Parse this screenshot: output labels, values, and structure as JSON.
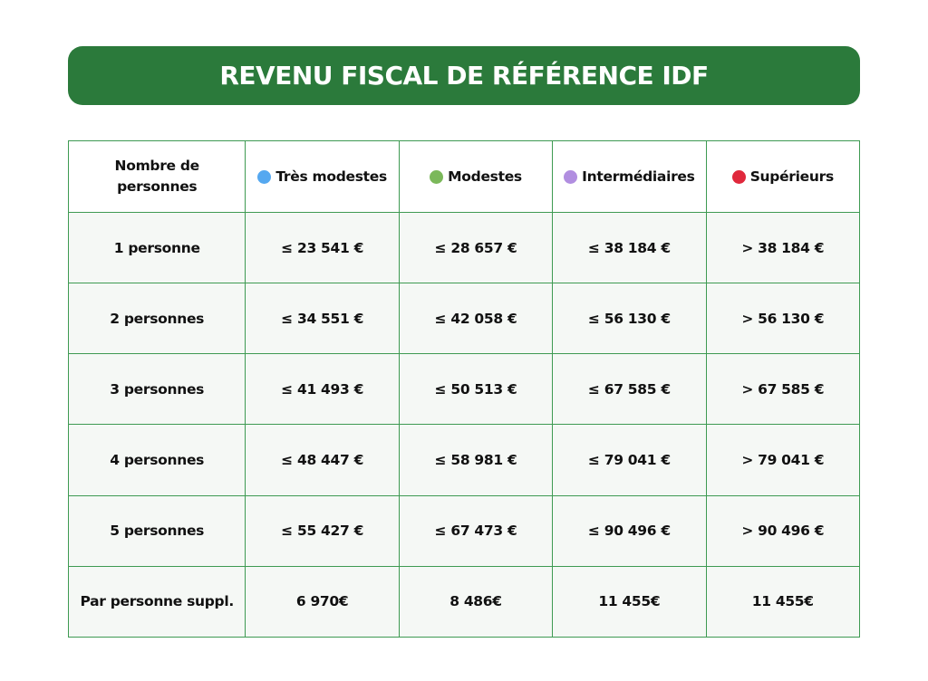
{
  "title": "REVENU FISCAL DE RÉFÉRENCE IDF",
  "colors": {
    "banner": "#2b7a3b",
    "border": "#3e9a52",
    "tres_modestes": "#55a8f0",
    "modestes": "#7bb85a",
    "intermediaires": "#b18ee0",
    "superieurs": "#e0283c"
  },
  "header": {
    "label": "Nombre de personnes",
    "columns": [
      {
        "label": "Très modestes",
        "dot_color": "#55a8f0"
      },
      {
        "label": "Modestes",
        "dot_color": "#7bb85a"
      },
      {
        "label": "Intermédiaires",
        "dot_color": "#b18ee0"
      },
      {
        "label": "Supérieurs",
        "dot_color": "#e0283c"
      }
    ]
  },
  "rows": [
    {
      "label": "1 personne",
      "values": [
        "≤ 23 541 €",
        "≤ 28 657 €",
        "≤ 38 184 €",
        "> 38 184 €"
      ]
    },
    {
      "label": "2 personnes",
      "values": [
        "≤ 34 551 €",
        "≤ 42 058 €",
        "≤ 56 130 €",
        "> 56 130 €"
      ]
    },
    {
      "label": "3 personnes",
      "values": [
        "≤ 41 493 €",
        "≤ 50 513 €",
        "≤ 67 585 €",
        "> 67 585 €"
      ]
    },
    {
      "label": "4 personnes",
      "values": [
        "≤ 48 447 €",
        "≤ 58 981 €",
        "≤ 79 041 €",
        "> 79 041 €"
      ]
    },
    {
      "label": "5 personnes",
      "values": [
        "≤ 55 427 €",
        "≤ 67 473 €",
        "≤ 90 496 €",
        "> 90 496 €"
      ]
    },
    {
      "label": "Par personne suppl.",
      "values": [
        "6 970€",
        "8 486€",
        "11 455€",
        "11 455€"
      ]
    }
  ]
}
